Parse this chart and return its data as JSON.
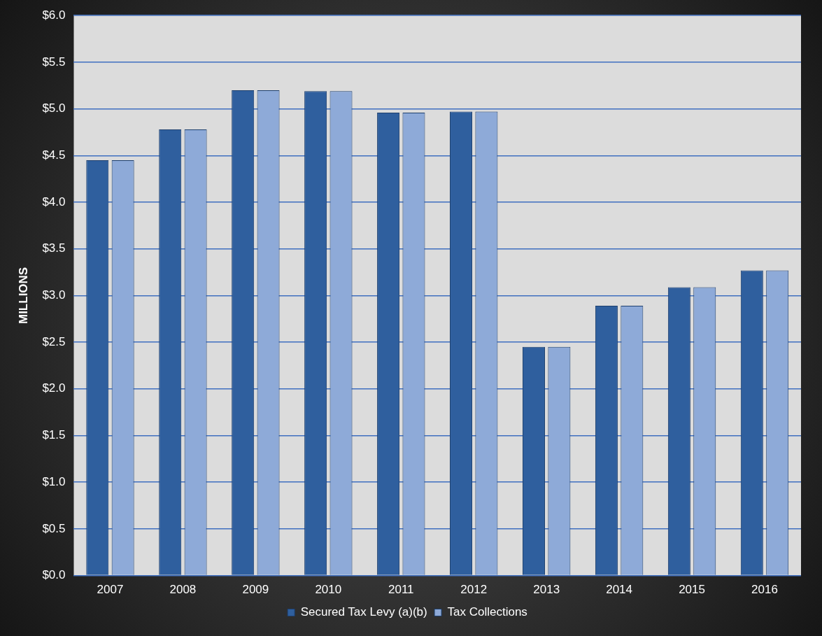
{
  "chart_data": {
    "type": "bar",
    "ylabel": "MILLIONS",
    "categories": [
      "2007",
      "2008",
      "2009",
      "2010",
      "2011",
      "2012",
      "2013",
      "2014",
      "2015",
      "2016"
    ],
    "series": [
      {
        "name": "Secured Tax Levy (a)(b)",
        "color": "#2f5f9e",
        "values": [
          4.45,
          4.78,
          5.2,
          5.19,
          4.96,
          4.97,
          2.45,
          2.89,
          3.09,
          3.27
        ]
      },
      {
        "name": "Tax Collections",
        "color": "#8eaad8",
        "values": [
          4.45,
          4.78,
          5.2,
          5.19,
          4.96,
          4.97,
          2.45,
          2.89,
          3.09,
          3.27
        ]
      }
    ],
    "ylim": [
      0,
      6
    ],
    "yticks": [
      {
        "value": 0,
        "label": "$0.0"
      },
      {
        "value": 0.5,
        "label": "$0.5"
      },
      {
        "value": 1,
        "label": "$1.0"
      },
      {
        "value": 1.5,
        "label": "$1.5"
      },
      {
        "value": 2,
        "label": "$2.0"
      },
      {
        "value": 2.5,
        "label": "$2.5"
      },
      {
        "value": 3,
        "label": "$3.0"
      },
      {
        "value": 3.5,
        "label": "$3.5"
      },
      {
        "value": 4,
        "label": "$4.0"
      },
      {
        "value": 4.5,
        "label": "$4.5"
      },
      {
        "value": 5,
        "label": "$5.0"
      },
      {
        "value": 5.5,
        "label": "$5.5"
      },
      {
        "value": 6,
        "label": "$6.0"
      }
    ],
    "grid": "y",
    "legend": "bottom"
  }
}
